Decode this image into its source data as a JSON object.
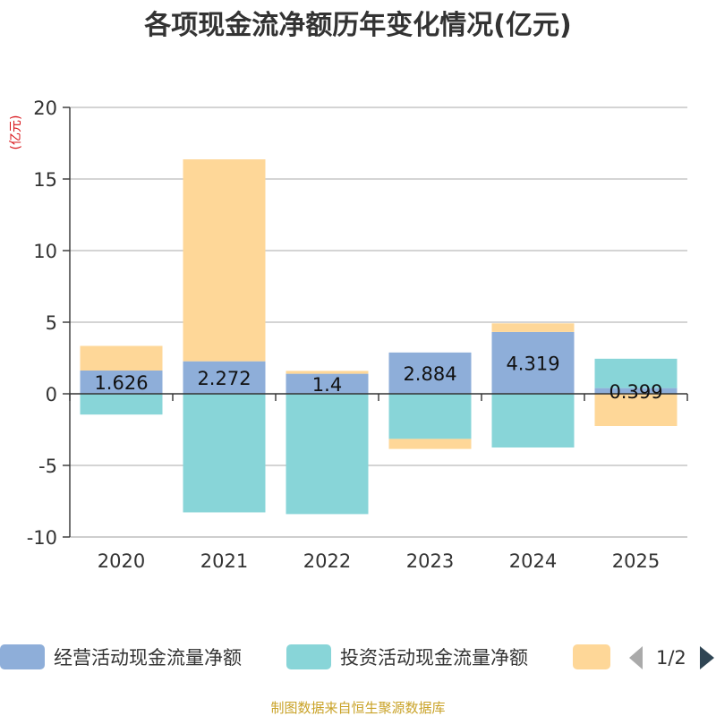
{
  "chart_data": {
    "type": "bar",
    "stacked": true,
    "title": "各项现金流净额历年变化情况(亿元)",
    "ylabel": "(亿元)",
    "xlabel": "",
    "ylim": [
      -10,
      20
    ],
    "yticks": [
      20,
      15,
      10,
      5,
      0,
      -5,
      -10
    ],
    "grid": true,
    "categories": [
      "2020",
      "2021",
      "2022",
      "2023",
      "2024",
      "2025"
    ],
    "series": [
      {
        "name": "经营活动现金流量净额",
        "color": "#8eaed9",
        "values": [
          1.626,
          2.272,
          1.4,
          2.884,
          4.319,
          0.399
        ],
        "labels": [
          "1.626",
          "2.272",
          "1.4",
          "2.884",
          "4.319",
          "0.399"
        ]
      },
      {
        "name": "投资活动现金流量净额",
        "color": "#88d5d8",
        "values": [
          -1.45,
          -8.28,
          -8.4,
          -3.15,
          -3.75,
          2.05
        ]
      },
      {
        "name": "",
        "color": "#fed798",
        "values": [
          1.72,
          14.1,
          0.2,
          -0.7,
          0.6,
          -2.25
        ]
      }
    ],
    "legend": {
      "position": "bottom",
      "page": "1/2"
    }
  },
  "footer": "制图数据来自恒生聚源数据库"
}
